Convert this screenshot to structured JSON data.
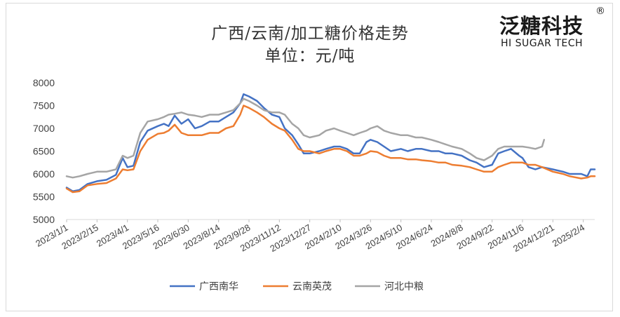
{
  "chart_data": {
    "type": "line",
    "title": "广西/云南/加工糖价格走势",
    "subtitle": "单位：元/吨",
    "ylim": [
      5000,
      8000
    ],
    "yticks": [
      5000,
      5500,
      6000,
      6500,
      7000,
      7500,
      8000
    ],
    "x_tick_labels": [
      "2023/1/1",
      "2023/2/15",
      "2023/4/1",
      "2023/5/16",
      "2023/6/30",
      "2023/8/14",
      "2023/9/28",
      "2023/11/12",
      "2023/12/27",
      "2024/2/10",
      "2024/3/26",
      "2024/5/10",
      "2024/6/24",
      "2024/8/8",
      "2024/9/22",
      "2024/11/6",
      "2024/12/21",
      "2025/2/4"
    ],
    "x_range": [
      "2023/1/1",
      "2025/2/21"
    ],
    "grid": false,
    "legend_position": "bottom",
    "series": [
      {
        "name": "广西南华",
        "color": "#4472C4",
        "points": [
          [
            "2023/1/1",
            5700
          ],
          [
            "2023/1/10",
            5620
          ],
          [
            "2023/1/20",
            5650
          ],
          [
            "2023/2/1",
            5780
          ],
          [
            "2023/2/15",
            5840
          ],
          [
            "2023/3/1",
            5870
          ],
          [
            "2023/3/15",
            5980
          ],
          [
            "2023/3/25",
            6350
          ],
          [
            "2023/4/1",
            6150
          ],
          [
            "2023/4/10",
            6180
          ],
          [
            "2023/4/20",
            6700
          ],
          [
            "2023/5/1",
            6950
          ],
          [
            "2023/5/16",
            7050
          ],
          [
            "2023/5/25",
            7100
          ],
          [
            "2023/6/1",
            7050
          ],
          [
            "2023/6/10",
            7280
          ],
          [
            "2023/6/20",
            7100
          ],
          [
            "2023/6/30",
            7200
          ],
          [
            "2023/7/10",
            7000
          ],
          [
            "2023/7/20",
            7050
          ],
          [
            "2023/8/1",
            7150
          ],
          [
            "2023/8/14",
            7150
          ],
          [
            "2023/8/25",
            7250
          ],
          [
            "2023/9/5",
            7350
          ],
          [
            "2023/9/15",
            7550
          ],
          [
            "2023/9/20",
            7750
          ],
          [
            "2023/9/28",
            7700
          ],
          [
            "2023/10/10",
            7600
          ],
          [
            "2023/10/20",
            7450
          ],
          [
            "2023/11/1",
            7300
          ],
          [
            "2023/11/12",
            7250
          ],
          [
            "2023/11/20",
            7000
          ],
          [
            "2023/12/1",
            6850
          ],
          [
            "2023/12/10",
            6650
          ],
          [
            "2023/12/18",
            6450
          ],
          [
            "2023/12/27",
            6450
          ],
          [
            "2024/1/10",
            6500
          ],
          [
            "2024/1/20",
            6550
          ],
          [
            "2024/2/1",
            6600
          ],
          [
            "2024/2/10",
            6600
          ],
          [
            "2024/2/20",
            6550
          ],
          [
            "2024/3/1",
            6450
          ],
          [
            "2024/3/10",
            6450
          ],
          [
            "2024/3/20",
            6700
          ],
          [
            "2024/3/26",
            6750
          ],
          [
            "2024/4/5",
            6700
          ],
          [
            "2024/4/15",
            6600
          ],
          [
            "2024/4/25",
            6500
          ],
          [
            "2024/5/10",
            6550
          ],
          [
            "2024/5/20",
            6500
          ],
          [
            "2024/6/1",
            6550
          ],
          [
            "2024/6/10",
            6550
          ],
          [
            "2024/6/24",
            6500
          ],
          [
            "2024/7/5",
            6500
          ],
          [
            "2024/7/15",
            6450
          ],
          [
            "2024/7/25",
            6450
          ],
          [
            "2024/8/8",
            6400
          ],
          [
            "2024/8/20",
            6300
          ],
          [
            "2024/8/30",
            6250
          ],
          [
            "2024/9/10",
            6150
          ],
          [
            "2024/9/22",
            6200
          ],
          [
            "2024/10/1",
            6450
          ],
          [
            "2024/10/10",
            6500
          ],
          [
            "2024/10/20",
            6550
          ],
          [
            "2024/11/1",
            6400
          ],
          [
            "2024/11/6",
            6350
          ],
          [
            "2024/11/15",
            6150
          ],
          [
            "2024/11/25",
            6100
          ],
          [
            "2024/12/5",
            6150
          ],
          [
            "2024/12/21",
            6100
          ],
          [
            "2025/1/5",
            6050
          ],
          [
            "2025/1/15",
            6000
          ],
          [
            "2025/2/1",
            6000
          ],
          [
            "2025/2/10",
            5950
          ],
          [
            "2025/2/15",
            6100
          ],
          [
            "2025/2/21",
            6100
          ]
        ]
      },
      {
        "name": "云南英茂",
        "color": "#ED7D31",
        "points": [
          [
            "2023/1/1",
            5680
          ],
          [
            "2023/1/10",
            5600
          ],
          [
            "2023/1/20",
            5620
          ],
          [
            "2023/2/1",
            5750
          ],
          [
            "2023/2/15",
            5780
          ],
          [
            "2023/3/1",
            5800
          ],
          [
            "2023/3/15",
            5900
          ],
          [
            "2023/3/25",
            6100
          ],
          [
            "2023/4/1",
            6080
          ],
          [
            "2023/4/10",
            6100
          ],
          [
            "2023/4/20",
            6500
          ],
          [
            "2023/5/1",
            6750
          ],
          [
            "2023/5/16",
            6880
          ],
          [
            "2023/5/25",
            6900
          ],
          [
            "2023/6/1",
            6950
          ],
          [
            "2023/6/10",
            7080
          ],
          [
            "2023/6/20",
            6900
          ],
          [
            "2023/6/30",
            6850
          ],
          [
            "2023/7/10",
            6850
          ],
          [
            "2023/7/20",
            6850
          ],
          [
            "2023/8/1",
            6900
          ],
          [
            "2023/8/14",
            6900
          ],
          [
            "2023/8/25",
            7000
          ],
          [
            "2023/9/5",
            7050
          ],
          [
            "2023/9/15",
            7300
          ],
          [
            "2023/9/20",
            7500
          ],
          [
            "2023/9/28",
            7450
          ],
          [
            "2023/10/10",
            7350
          ],
          [
            "2023/10/20",
            7250
          ],
          [
            "2023/11/1",
            7100
          ],
          [
            "2023/11/12",
            7000
          ],
          [
            "2023/11/20",
            6950
          ],
          [
            "2023/12/1",
            6750
          ],
          [
            "2023/12/10",
            6550
          ],
          [
            "2023/12/18",
            6500
          ],
          [
            "2023/12/27",
            6500
          ],
          [
            "2024/1/10",
            6450
          ],
          [
            "2024/1/20",
            6500
          ],
          [
            "2024/2/1",
            6550
          ],
          [
            "2024/2/10",
            6550
          ],
          [
            "2024/2/20",
            6500
          ],
          [
            "2024/3/1",
            6400
          ],
          [
            "2024/3/10",
            6400
          ],
          [
            "2024/3/20",
            6450
          ],
          [
            "2024/3/26",
            6500
          ],
          [
            "2024/4/5",
            6480
          ],
          [
            "2024/4/15",
            6400
          ],
          [
            "2024/4/25",
            6350
          ],
          [
            "2024/5/10",
            6350
          ],
          [
            "2024/5/20",
            6320
          ],
          [
            "2024/6/1",
            6320
          ],
          [
            "2024/6/10",
            6300
          ],
          [
            "2024/6/24",
            6280
          ],
          [
            "2024/7/5",
            6250
          ],
          [
            "2024/7/15",
            6250
          ],
          [
            "2024/7/25",
            6200
          ],
          [
            "2024/8/8",
            6180
          ],
          [
            "2024/8/20",
            6150
          ],
          [
            "2024/8/30",
            6100
          ],
          [
            "2024/9/10",
            6050
          ],
          [
            "2024/9/22",
            6050
          ],
          [
            "2024/10/1",
            6150
          ],
          [
            "2024/10/10",
            6200
          ],
          [
            "2024/10/20",
            6250
          ],
          [
            "2024/11/1",
            6250
          ],
          [
            "2024/11/6",
            6250
          ],
          [
            "2024/11/15",
            6200
          ],
          [
            "2024/11/25",
            6200
          ],
          [
            "2024/12/5",
            6150
          ],
          [
            "2024/12/21",
            6050
          ],
          [
            "2025/1/5",
            6000
          ],
          [
            "2025/1/15",
            5950
          ],
          [
            "2025/2/1",
            5900
          ],
          [
            "2025/2/10",
            5920
          ],
          [
            "2025/2/15",
            5950
          ],
          [
            "2025/2/21",
            5950
          ]
        ]
      },
      {
        "name": "河北中粮",
        "color": "#A5A5A5",
        "points": [
          [
            "2023/1/1",
            5950
          ],
          [
            "2023/1/10",
            5920
          ],
          [
            "2023/1/20",
            5950
          ],
          [
            "2023/2/1",
            6000
          ],
          [
            "2023/2/15",
            6050
          ],
          [
            "2023/3/1",
            6050
          ],
          [
            "2023/3/15",
            6100
          ],
          [
            "2023/3/25",
            6400
          ],
          [
            "2023/4/1",
            6350
          ],
          [
            "2023/4/10",
            6400
          ],
          [
            "2023/4/20",
            6900
          ],
          [
            "2023/5/1",
            7150
          ],
          [
            "2023/5/16",
            7200
          ],
          [
            "2023/5/25",
            7250
          ],
          [
            "2023/6/1",
            7300
          ],
          [
            "2023/6/10",
            7320
          ],
          [
            "2023/6/20",
            7350
          ],
          [
            "2023/6/30",
            7300
          ],
          [
            "2023/7/10",
            7280
          ],
          [
            "2023/7/20",
            7250
          ],
          [
            "2023/8/1",
            7300
          ],
          [
            "2023/8/14",
            7300
          ],
          [
            "2023/8/25",
            7350
          ],
          [
            "2023/9/5",
            7400
          ],
          [
            "2023/9/15",
            7550
          ],
          [
            "2023/9/20",
            7650
          ],
          [
            "2023/9/28",
            7600
          ],
          [
            "2023/10/10",
            7500
          ],
          [
            "2023/10/20",
            7400
          ],
          [
            "2023/11/1",
            7350
          ],
          [
            "2023/11/12",
            7350
          ],
          [
            "2023/11/20",
            7300
          ],
          [
            "2023/12/1",
            7100
          ],
          [
            "2023/12/10",
            7000
          ],
          [
            "2023/12/18",
            6850
          ],
          [
            "2023/12/27",
            6800
          ],
          [
            "2024/1/10",
            6850
          ],
          [
            "2024/1/20",
            6950
          ],
          [
            "2024/2/1",
            7000
          ],
          [
            "2024/2/10",
            6950
          ],
          [
            "2024/2/20",
            6900
          ],
          [
            "2024/3/1",
            6850
          ],
          [
            "2024/3/10",
            6900
          ],
          [
            "2024/3/20",
            6950
          ],
          [
            "2024/3/26",
            7000
          ],
          [
            "2024/4/5",
            7050
          ],
          [
            "2024/4/15",
            6950
          ],
          [
            "2024/4/25",
            6900
          ],
          [
            "2024/5/10",
            6850
          ],
          [
            "2024/5/20",
            6850
          ],
          [
            "2024/6/1",
            6800
          ],
          [
            "2024/6/10",
            6800
          ],
          [
            "2024/6/24",
            6750
          ],
          [
            "2024/7/5",
            6700
          ],
          [
            "2024/7/15",
            6650
          ],
          [
            "2024/7/25",
            6600
          ],
          [
            "2024/8/8",
            6550
          ],
          [
            "2024/8/20",
            6450
          ],
          [
            "2024/8/30",
            6350
          ],
          [
            "2024/9/10",
            6300
          ],
          [
            "2024/9/22",
            6400
          ],
          [
            "2024/10/1",
            6550
          ],
          [
            "2024/10/10",
            6600
          ],
          [
            "2024/10/20",
            6600
          ],
          [
            "2024/11/1",
            6600
          ],
          [
            "2024/11/6",
            6600
          ],
          [
            "2024/11/15",
            6580
          ],
          [
            "2024/11/25",
            6550
          ],
          [
            "2024/12/5",
            6600
          ],
          [
            "2024/12/8",
            6750
          ]
        ]
      }
    ]
  },
  "brand": {
    "name_cn": "泛糖科技",
    "name_en": "HI SUGAR TECH",
    "reg_mark": "®"
  }
}
